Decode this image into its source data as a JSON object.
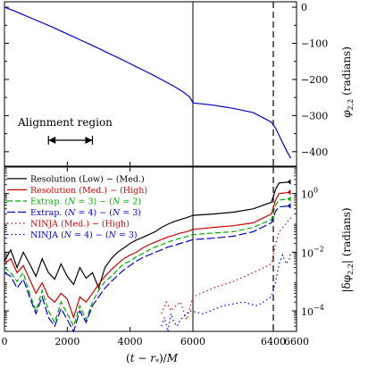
{
  "chart_data": [
    {
      "type": "line",
      "panel": "top",
      "ylabel": "φ2,2 (radians)",
      "ylabel_parts": {
        "sym": "φ",
        "sub": "2,2",
        "unit": "(radians)"
      },
      "xlim": [
        0,
        6600
      ],
      "ylim": [
        -440,
        15
      ],
      "yticks": [
        0,
        -100,
        -200,
        -300,
        -400
      ],
      "ytick_labels": [
        "0",
        "−100",
        "−200",
        "−300",
        "−400"
      ],
      "grid": false,
      "annotation": "Alignment region",
      "alignment_region": [
        1400,
        2800
      ],
      "vlines": [
        {
          "x": 6000,
          "style": "solid"
        },
        {
          "x": 6390,
          "style": "dashed"
        }
      ],
      "series": [
        {
          "color": "#0000cc",
          "x": [
            0,
            300,
            600,
            900,
            1200,
            1500,
            1800,
            2100,
            2400,
            2700,
            3000,
            3300,
            3600,
            3900,
            4200,
            4500,
            4800,
            5100,
            5400,
            5700,
            5900,
            6000,
            6100,
            6200,
            6300,
            6390,
            6420,
            6450,
            6480,
            6510,
            6550
          ],
          "y": [
            0,
            -10,
            -21,
            -32,
            -43,
            -54,
            -66,
            -78,
            -90,
            -102,
            -114,
            -127,
            -139,
            -152,
            -165,
            -178,
            -191,
            -205,
            -219,
            -235,
            -249,
            -265,
            -271,
            -280,
            -292,
            -318,
            -335,
            -355,
            -375,
            -395,
            -418
          ]
        }
      ]
    },
    {
      "type": "line",
      "panel": "bottom",
      "xlabel": "(t − r*)/M",
      "ylabel": "|δφ2,2| (radians)",
      "ylabel_parts": {
        "sym": "|δφ",
        "sub": "2,2",
        "tail": "| (radians)"
      },
      "yscale": "log",
      "xlim": [
        0,
        6600
      ],
      "ylim": [
        2e-05,
        8
      ],
      "xticks": [
        0,
        2000,
        4000,
        6000,
        6400,
        6600
      ],
      "xtick_labels": [
        "0",
        "2000",
        "4000",
        "6000",
        "6400",
        "6600"
      ],
      "yticks": [
        1,
        0.01,
        0.0001
      ],
      "ytick_labels": [
        "10^0",
        "10^-2",
        "10^-4"
      ],
      "legend_position": "top-left",
      "grid": false,
      "vlines": [
        {
          "x": 6000,
          "style": "solid"
        },
        {
          "x": 6390,
          "style": "dashed"
        }
      ],
      "series": [
        {
          "name": "Resolution (Low) − (Med.)",
          "legend_parts": [
            "Resolution (Low) − (Med.)"
          ],
          "color": "#000000",
          "dash": "solid",
          "x": [
            0,
            200,
            400,
            600,
            800,
            1000,
            1200,
            1400,
            1600,
            1800,
            2000,
            2200,
            2400,
            2600,
            2800,
            3000,
            3200,
            3400,
            3600,
            3800,
            4000,
            4200,
            4400,
            4600,
            4800,
            5000,
            5200,
            5400,
            5600,
            5800,
            6000,
            6100,
            6200,
            6300,
            6390,
            6420,
            6450,
            6550
          ],
          "y": [
            0.005,
            0.012,
            0.003,
            0.01,
            0.004,
            0.0015,
            0.006,
            0.002,
            0.0012,
            0.004,
            0.0015,
            0.0008,
            0.003,
            0.0013,
            0.002,
            0.0006,
            0.003,
            0.006,
            0.01,
            0.014,
            0.02,
            0.026,
            0.032,
            0.04,
            0.05,
            0.07,
            0.09,
            0.11,
            0.13,
            0.15,
            0.18,
            0.2,
            0.23,
            0.3,
            0.5,
            1.4,
            2.3,
            2.5
          ]
        },
        {
          "name": "Resolution (Med.) − (High)",
          "legend_parts": [
            "Resolution (Med.) − (High)"
          ],
          "color": "#cc0000",
          "dash": "solid",
          "x": [
            0,
            200,
            400,
            600,
            800,
            1000,
            1200,
            1400,
            1600,
            1800,
            2000,
            2200,
            2400,
            2600,
            2800,
            3000,
            3200,
            3400,
            3600,
            3800,
            4000,
            4200,
            4400,
            4600,
            4800,
            5000,
            5200,
            5400,
            5600,
            5800,
            6000,
            6100,
            6200,
            6300,
            6390,
            6420,
            6450,
            6550
          ],
          "y": [
            0.004,
            0.006,
            0.002,
            0.0035,
            0.0012,
            0.0004,
            0.0009,
            0.0003,
            0.0002,
            0.0004,
            0.00025,
            6e-05,
            0.0003,
            0.0002,
            0.0004,
            0.0008,
            0.0015,
            0.0025,
            0.004,
            0.006,
            0.008,
            0.01,
            0.014,
            0.018,
            0.022,
            0.027,
            0.033,
            0.038,
            0.045,
            0.05,
            0.06,
            0.07,
            0.08,
            0.1,
            0.2,
            0.6,
            1.0,
            1.1
          ]
        },
        {
          "name": "Extrap. (N = 3) − (N = 2)",
          "legend_parts": [
            "Extrap. (",
            "N",
            " = 3) − (",
            "N",
            " = 2)"
          ],
          "color": "#00aa00",
          "dash": "6,3",
          "x": [
            0,
            200,
            400,
            600,
            800,
            1000,
            1200,
            1400,
            1600,
            1800,
            2000,
            2200,
            2400,
            2600,
            2800,
            3000,
            3200,
            3400,
            3600,
            3800,
            4000,
            4200,
            4400,
            4600,
            4800,
            5000,
            5200,
            5400,
            5600,
            5800,
            6000,
            6100,
            6200,
            6300,
            6390,
            6420,
            6450,
            6550
          ],
          "y": [
            0.003,
            0.002,
            0.001,
            0.002,
            0.0004,
            0.0001,
            0.0005,
            0.0001,
            4e-05,
            0.0002,
            8e-05,
            3e-05,
            0.00015,
            5e-05,
            0.0002,
            0.0005,
            0.001,
            0.0015,
            0.0025,
            0.004,
            0.005,
            0.007,
            0.009,
            0.012,
            0.015,
            0.018,
            0.022,
            0.026,
            0.03,
            0.034,
            0.04,
            0.045,
            0.05,
            0.07,
            0.13,
            0.4,
            0.6,
            0.65
          ]
        },
        {
          "name": "Extrap. (N = 4) − (N = 3)",
          "legend_parts": [
            "Extrap. (",
            "N",
            " = 4) − (",
            "N",
            " = 3)"
          ],
          "color": "#0000cc",
          "dash": "9,3",
          "x": [
            0,
            200,
            400,
            600,
            800,
            1000,
            1200,
            1400,
            1600,
            1800,
            2000,
            2200,
            2400,
            2600,
            2800,
            3000,
            3200,
            3400,
            3600,
            3800,
            4000,
            4200,
            4400,
            4600,
            4800,
            5000,
            5200,
            5400,
            5600,
            5800,
            6000,
            6100,
            6200,
            6300,
            6390,
            6420,
            6450,
            6550
          ],
          "y": [
            0.002,
            0.0015,
            0.0006,
            0.0012,
            0.0003,
            8e-05,
            0.0003,
            6e-05,
            3e-05,
            0.00012,
            5e-05,
            2e-05,
            0.0001,
            4e-05,
            0.00015,
            0.0003,
            0.0006,
            0.001,
            0.0016,
            0.0025,
            0.0035,
            0.005,
            0.0065,
            0.008,
            0.01,
            0.012,
            0.015,
            0.017,
            0.02,
            0.023,
            0.027,
            0.03,
            0.035,
            0.05,
            0.1,
            0.25,
            0.35,
            0.38
          ]
        },
        {
          "name": "NINJA (Med.) − (High)",
          "legend_parts": [
            "NINJA (Med.) − (High)"
          ],
          "color": "#cc0000",
          "dash": "1.5,3",
          "x": [
            5000,
            5150,
            5300,
            5450,
            5600,
            5800,
            6000,
            6100,
            6200,
            6300,
            6390,
            6420,
            6450,
            6550
          ],
          "y": [
            8e-05,
            0.0002,
            0.0001,
            0.00015,
            0.0002,
            5e-05,
            0.0003,
            0.0006,
            0.001,
            0.002,
            0.004,
            0.02,
            0.05,
            0.15
          ]
        },
        {
          "name": "NINJA (N = 4) − (N = 3)",
          "legend_parts": [
            "NINJA (",
            "N",
            " = 4) − (",
            "N",
            " = 3)"
          ],
          "color": "#0000cc",
          "dash": "1.5,3",
          "x": [
            5000,
            5100,
            5200,
            5300,
            5400,
            5500,
            5600,
            5900,
            6050,
            6150,
            6250,
            6320,
            6390,
            6420,
            6450,
            6480,
            6510,
            6540,
            6550
          ],
          "y": [
            3e-05,
            6e-05,
            2e-05,
            8e-05,
            4e-05,
            3e-05,
            5e-05,
            0.0001,
            8e-05,
            0.00015,
            0.0002,
            0.00015,
            0.0003,
            0.001,
            0.004,
            0.008,
            0.004,
            0.006,
            0.01
          ]
        }
      ]
    }
  ]
}
